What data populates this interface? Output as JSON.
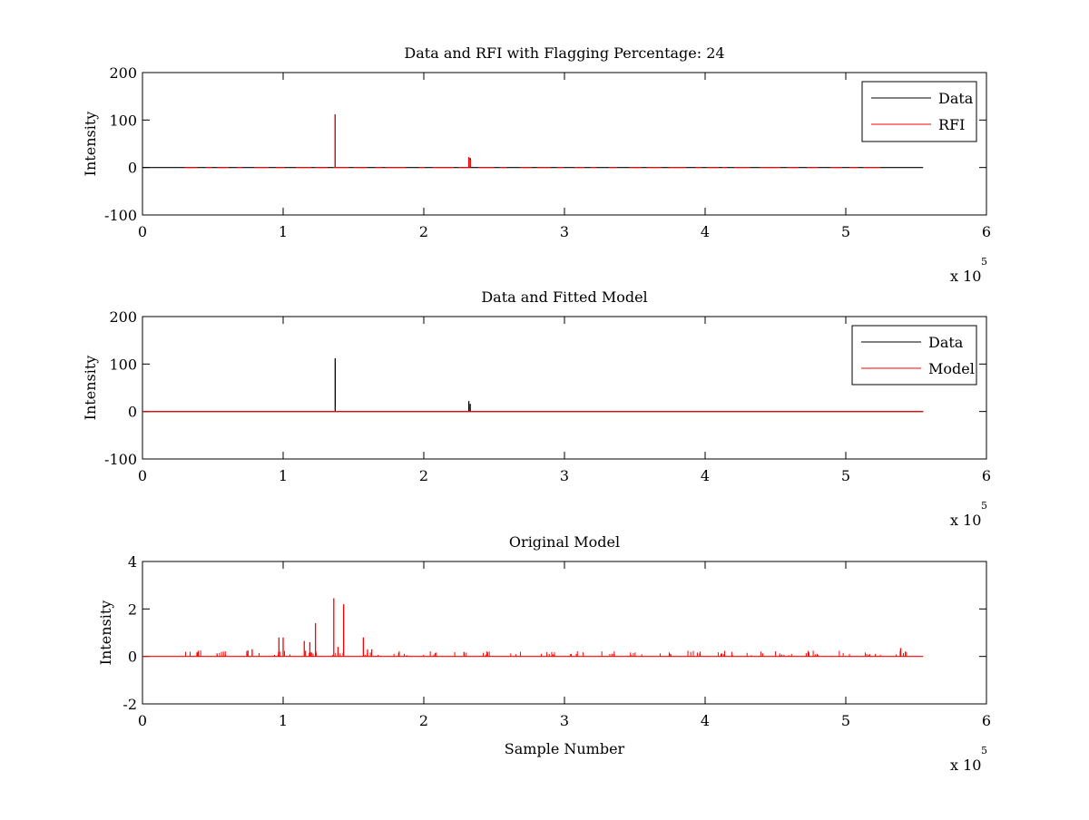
{
  "chart_data": [
    {
      "type": "line",
      "title": "Data and RFI with Flagging Percentage: 24",
      "xlabel": "",
      "ylabel": "Intensity",
      "xlim": [
        0,
        6
      ],
      "ylim": [
        -100,
        200
      ],
      "x_ticks": [
        "0",
        "1",
        "2",
        "3",
        "4",
        "5",
        "6"
      ],
      "y_ticks": [
        "-100",
        "0",
        "100",
        "200"
      ],
      "x_exponent": {
        "prefix": "x 10",
        "power": "5"
      },
      "legend": "top-right",
      "grid": false,
      "series": [
        {
          "name": "Data",
          "color": "#000000",
          "x": [
            0,
            1.37,
            2.33,
            5.55
          ],
          "y": [
            0,
            112,
            20,
            0
          ]
        },
        {
          "name": "RFI",
          "color": "#ff0000",
          "x": [
            0.3,
            1.37,
            2.32,
            2.33,
            5.25
          ],
          "y": [
            0,
            112,
            22,
            16,
            0
          ]
        }
      ]
    },
    {
      "type": "line",
      "title": "Data and Fitted Model",
      "xlabel": "",
      "ylabel": "Intensity",
      "xlim": [
        0,
        6
      ],
      "ylim": [
        -100,
        200
      ],
      "x_ticks": [
        "0",
        "1",
        "2",
        "3",
        "4",
        "5",
        "6"
      ],
      "y_ticks": [
        "-100",
        "0",
        "100",
        "200"
      ],
      "x_exponent": {
        "prefix": "x 10",
        "power": "5"
      },
      "legend": "top-right",
      "grid": false,
      "series": [
        {
          "name": "Data",
          "color": "#000000",
          "x": [
            0,
            1.37,
            2.32,
            2.33,
            5.55
          ],
          "y": [
            0,
            112,
            22,
            16,
            0
          ]
        },
        {
          "name": "Model",
          "color": "#ff0000",
          "x": [
            0,
            5.55
          ],
          "y": [
            0,
            0
          ]
        }
      ]
    },
    {
      "type": "line",
      "title": "Original Model",
      "xlabel": "Sample Number",
      "ylabel": "Intensity",
      "xlim": [
        0,
        6
      ],
      "ylim": [
        -2,
        4
      ],
      "x_ticks": [
        "0",
        "1",
        "2",
        "3",
        "4",
        "5",
        "6"
      ],
      "y_ticks": [
        "-2",
        "0",
        "2",
        "4"
      ],
      "x_exponent": {
        "prefix": "x 10",
        "power": "5"
      },
      "legend": "none",
      "grid": false,
      "series": [
        {
          "name": "",
          "color": "#ff0000",
          "x": [
            0.97,
            1.0,
            1.15,
            1.19,
            1.23,
            1.36,
            1.39,
            1.43,
            1.57,
            1.6,
            1.63,
            0.78,
            0.75,
            5.39
          ],
          "y": [
            0.8,
            0.8,
            0.65,
            0.6,
            1.4,
            2.45,
            0.4,
            2.2,
            0.8,
            0.3,
            0.3,
            0.3,
            0.25,
            0.35
          ]
        }
      ]
    }
  ]
}
